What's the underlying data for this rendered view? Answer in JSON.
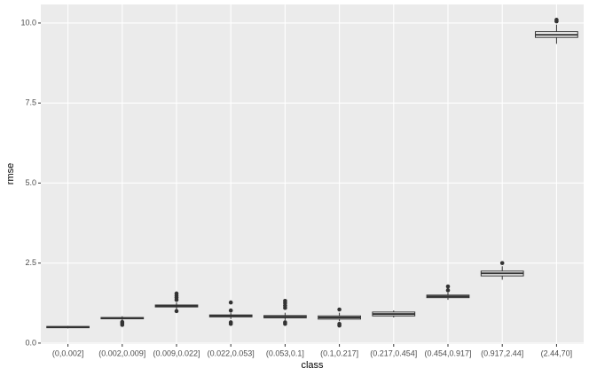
{
  "chart_data": {
    "type": "box",
    "x_label": "class",
    "y_label": "rmse",
    "categories": [
      "(0,0.002]",
      "(0.002,0.009]",
      "(0.009,0.022]",
      "(0.022,0.053]",
      "(0.053,0.1]",
      "(0.1,0.217]",
      "(0.217,0.454]",
      "(0.454,0.917]",
      "(0.917,2.44]",
      "(2.44,70]"
    ],
    "boxes": [
      {
        "min": 0.46,
        "q1": 0.48,
        "median": 0.5,
        "q3": 0.52,
        "max": 0.54,
        "outliers": []
      },
      {
        "min": 0.72,
        "q1": 0.76,
        "median": 0.78,
        "q3": 0.8,
        "max": 0.84,
        "outliers": [
          0.57,
          0.62,
          0.66
        ]
      },
      {
        "min": 1.05,
        "q1": 1.13,
        "median": 1.16,
        "q3": 1.19,
        "max": 1.27,
        "outliers": [
          1.0,
          1.35,
          1.42,
          1.48,
          1.55
        ]
      },
      {
        "min": 0.75,
        "q1": 0.82,
        "median": 0.85,
        "q3": 0.88,
        "max": 0.95,
        "outliers": [
          0.6,
          0.65,
          1.02,
          1.27
        ]
      },
      {
        "min": 0.72,
        "q1": 0.79,
        "median": 0.82,
        "q3": 0.86,
        "max": 0.95,
        "outliers": [
          0.6,
          0.65,
          1.1,
          1.17,
          1.25,
          1.32
        ]
      },
      {
        "min": 0.68,
        "q1": 0.75,
        "median": 0.8,
        "q3": 0.85,
        "max": 0.95,
        "outliers": [
          0.55,
          0.6,
          1.05
        ]
      },
      {
        "min": 0.8,
        "q1": 0.85,
        "median": 0.91,
        "q3": 0.97,
        "max": 1.02,
        "outliers": []
      },
      {
        "min": 1.35,
        "q1": 1.42,
        "median": 1.46,
        "q3": 1.5,
        "max": 1.58,
        "outliers": [
          1.65,
          1.77
        ]
      },
      {
        "min": 1.98,
        "q1": 2.1,
        "median": 2.18,
        "q3": 2.25,
        "max": 2.4,
        "outliers": [
          2.5
        ]
      },
      {
        "min": 9.35,
        "q1": 9.55,
        "median": 9.63,
        "q3": 9.73,
        "max": 9.95,
        "outliers": [
          10.05,
          10.1
        ]
      }
    ],
    "fill": "#ffffff",
    "stroke": "#333333",
    "ylim": [
      -0.03,
      10.58
    ],
    "yticks": [
      {
        "value": 0,
        "label": "0.0"
      },
      2.5,
      {
        "value": 5,
        "label": "5.0"
      },
      7.5,
      {
        "value": 10,
        "label": "10.0"
      }
    ],
    "grid": true
  }
}
